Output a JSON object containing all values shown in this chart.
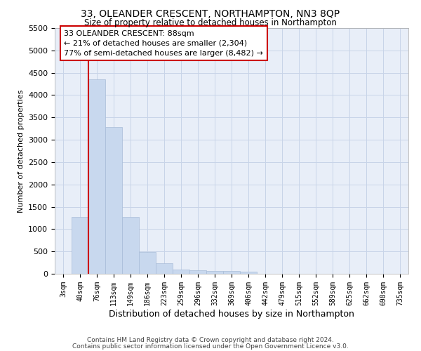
{
  "title1": "33, OLEANDER CRESCENT, NORTHAMPTON, NN3 8QP",
  "title2": "Size of property relative to detached houses in Northampton",
  "xlabel": "Distribution of detached houses by size in Northampton",
  "ylabel": "Number of detached properties",
  "categories": [
    "3sqm",
    "40sqm",
    "76sqm",
    "113sqm",
    "149sqm",
    "186sqm",
    "223sqm",
    "259sqm",
    "296sqm",
    "332sqm",
    "369sqm",
    "406sqm",
    "442sqm",
    "479sqm",
    "515sqm",
    "552sqm",
    "589sqm",
    "625sqm",
    "662sqm",
    "698sqm",
    "735sqm"
  ],
  "values": [
    0,
    1280,
    4350,
    3280,
    1280,
    490,
    240,
    100,
    80,
    70,
    60,
    50,
    0,
    0,
    0,
    0,
    0,
    0,
    0,
    0,
    0
  ],
  "bar_color": "#c8d8ee",
  "bar_edge_color": "#a8bcd8",
  "red_line_index": 2,
  "annotation_text": "33 OLEANDER CRESCENT: 88sqm\n← 21% of detached houses are smaller (2,304)\n77% of semi-detached houses are larger (8,482) →",
  "annotation_box_color": "white",
  "annotation_box_edge_color": "#cc0000",
  "red_line_color": "#cc0000",
  "ylim": [
    0,
    5500
  ],
  "yticks": [
    0,
    500,
    1000,
    1500,
    2000,
    2500,
    3000,
    3500,
    4000,
    4500,
    5000,
    5500
  ],
  "grid_color": "#c8d4e8",
  "bg_color": "#e8eef8",
  "footer1": "Contains HM Land Registry data © Crown copyright and database right 2024.",
  "footer2": "Contains public sector information licensed under the Open Government Licence v3.0."
}
